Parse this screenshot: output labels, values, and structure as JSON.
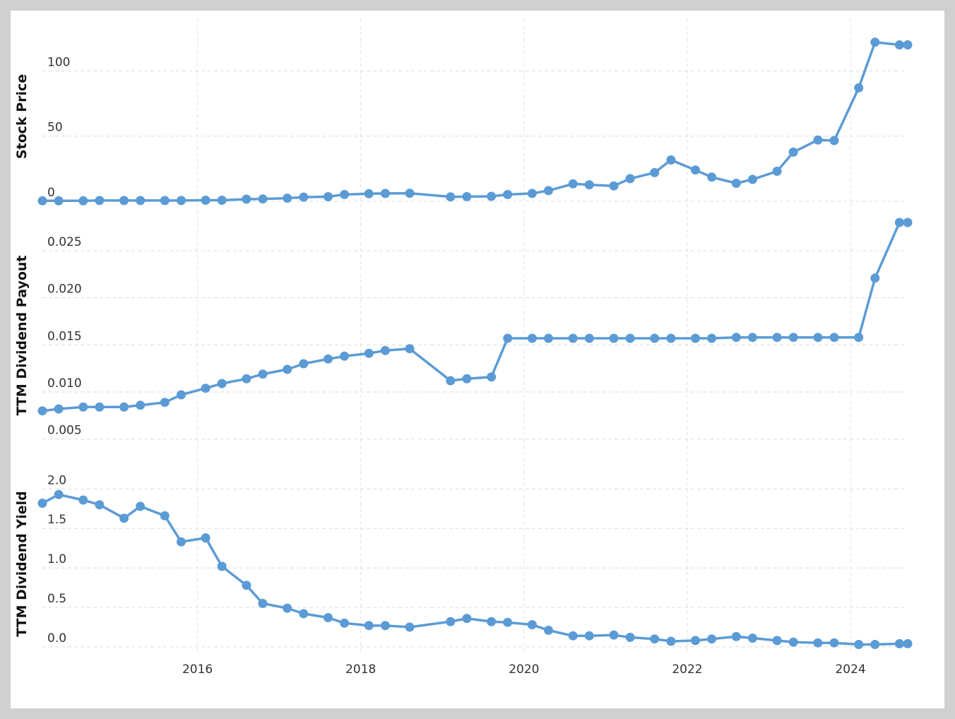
{
  "chart_data": {
    "type": "line",
    "x_unit": "year",
    "xlim": [
      2014.1,
      2024.7
    ],
    "x_ticks": [
      "2016",
      "2018",
      "2020",
      "2022",
      "2024"
    ],
    "x_tick_values": [
      2016,
      2018,
      2020,
      2022,
      2024
    ],
    "series_color": "#5b9bd5",
    "grid": true,
    "panels": [
      {
        "ylabel": "Stock Price",
        "ylim": [
          0,
          130
        ],
        "y_ticks": [
          "0",
          "50",
          "100"
        ],
        "y_tick_values": [
          0,
          50,
          100
        ],
        "x": [
          2014.1,
          2014.3,
          2014.6,
          2014.8,
          2015.1,
          2015.3,
          2015.6,
          2015.8,
          2016.1,
          2016.3,
          2016.6,
          2016.8,
          2017.1,
          2017.3,
          2017.6,
          2017.8,
          2018.1,
          2018.3,
          2018.6,
          2019.1,
          2019.3,
          2019.6,
          2019.8,
          2020.1,
          2020.3,
          2020.6,
          2020.8,
          2021.1,
          2021.3,
          2021.6,
          2021.8,
          2022.1,
          2022.3,
          2022.6,
          2022.8,
          2023.1,
          2023.3,
          2023.6,
          2023.8,
          2024.1,
          2024.3,
          2024.6,
          2024.7
        ],
        "values": [
          0.4,
          0.4,
          0.4,
          0.6,
          0.6,
          0.6,
          0.6,
          0.6,
          0.8,
          0.8,
          1.6,
          1.8,
          2.4,
          3.2,
          3.5,
          5.2,
          5.8,
          6.0,
          6.2,
          3.4,
          3.6,
          3.8,
          5.2,
          6.0,
          8.2,
          13.4,
          12.7,
          11.8,
          17.4,
          22.0,
          31.7,
          24.0,
          18.5,
          13.8,
          16.8,
          23.0,
          37.7,
          47.0,
          46.6,
          87.0,
          122.0,
          120.0,
          120.0
        ]
      },
      {
        "ylabel": "TTM Dividend Payout",
        "ylim": [
          0.004,
          0.028
        ],
        "y_ticks": [
          "0.005",
          "0.010",
          "0.015",
          "0.020",
          "0.025"
        ],
        "y_tick_values": [
          0.005,
          0.01,
          0.015,
          0.02,
          0.025
        ],
        "x": [
          2014.1,
          2014.3,
          2014.6,
          2014.8,
          2015.1,
          2015.3,
          2015.6,
          2015.8,
          2016.1,
          2016.3,
          2016.6,
          2016.8,
          2017.1,
          2017.3,
          2017.6,
          2017.8,
          2018.1,
          2018.3,
          2018.6,
          2019.1,
          2019.3,
          2019.6,
          2019.8,
          2020.1,
          2020.3,
          2020.6,
          2020.8,
          2021.1,
          2021.3,
          2021.6,
          2021.8,
          2022.1,
          2022.3,
          2022.6,
          2022.8,
          2023.1,
          2023.3,
          2023.6,
          2023.8,
          2024.1,
          2024.3,
          2024.6,
          2024.7
        ],
        "values": [
          0.008,
          0.0082,
          0.0084,
          0.0084,
          0.0084,
          0.0086,
          0.0089,
          0.0097,
          0.0104,
          0.0109,
          0.0114,
          0.0119,
          0.0124,
          0.013,
          0.0135,
          0.0138,
          0.0141,
          0.0144,
          0.0146,
          0.0112,
          0.0114,
          0.0116,
          0.0157,
          0.0157,
          0.0157,
          0.0157,
          0.0157,
          0.0157,
          0.0157,
          0.0157,
          0.0157,
          0.0157,
          0.0157,
          0.0158,
          0.0158,
          0.0158,
          0.0158,
          0.0158,
          0.0158,
          0.0158,
          0.0221,
          0.028,
          0.028
        ]
      },
      {
        "ylabel": "TTM Dividend Yield",
        "ylim": [
          -0.1,
          2.2
        ],
        "y_ticks": [
          "0.0",
          "0.5",
          "1.0",
          "1.5",
          "2.0"
        ],
        "y_tick_values": [
          0.0,
          0.5,
          1.0,
          1.5,
          2.0
        ],
        "x": [
          2014.1,
          2014.3,
          2014.6,
          2014.8,
          2015.1,
          2015.3,
          2015.6,
          2015.8,
          2016.1,
          2016.3,
          2016.6,
          2016.8,
          2017.1,
          2017.3,
          2017.6,
          2017.8,
          2018.1,
          2018.3,
          2018.6,
          2019.1,
          2019.3,
          2019.6,
          2019.8,
          2020.1,
          2020.3,
          2020.6,
          2020.8,
          2021.1,
          2021.3,
          2021.6,
          2021.8,
          2022.1,
          2022.3,
          2022.6,
          2022.8,
          2023.1,
          2023.3,
          2023.6,
          2023.8,
          2024.1,
          2024.3,
          2024.6,
          2024.7
        ],
        "values": [
          1.82,
          1.93,
          1.86,
          1.8,
          1.63,
          1.78,
          1.66,
          1.33,
          1.38,
          1.02,
          0.78,
          0.55,
          0.49,
          0.42,
          0.37,
          0.3,
          0.27,
          0.27,
          0.25,
          0.32,
          0.36,
          0.32,
          0.31,
          0.28,
          0.21,
          0.14,
          0.14,
          0.15,
          0.12,
          0.1,
          0.07,
          0.08,
          0.1,
          0.13,
          0.11,
          0.08,
          0.06,
          0.05,
          0.05,
          0.03,
          0.03,
          0.04,
          0.04
        ]
      }
    ]
  }
}
